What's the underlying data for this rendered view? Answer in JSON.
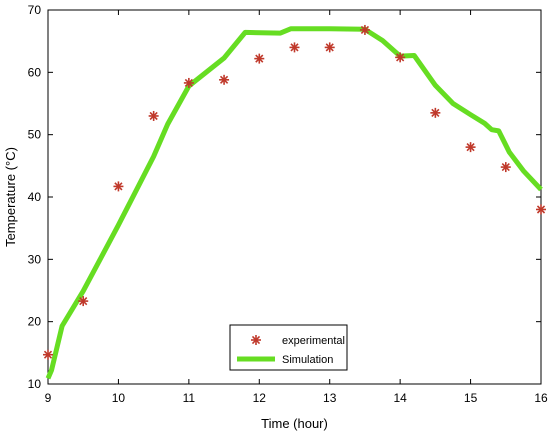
{
  "chart_data": {
    "type": "line",
    "title": "",
    "xlabel": "Time (hour)",
    "ylabel": "Temperature (°C)",
    "xlim": [
      9,
      16
    ],
    "ylim": [
      10,
      70
    ],
    "xticks": [
      "9",
      "10",
      "11",
      "12",
      "13",
      "14",
      "15",
      "16"
    ],
    "yticks": [
      "10",
      "20",
      "30",
      "40",
      "50",
      "60",
      "70"
    ],
    "grid": false,
    "legend_position": "bottom-center",
    "series": [
      {
        "name": "experimental",
        "style": "markers",
        "marker": "asterisk",
        "color": "#c0392b",
        "x": [
          9.0,
          9.5,
          10.0,
          10.5,
          11.0,
          11.5,
          12.0,
          12.5,
          13.0,
          13.5,
          14.0,
          14.5,
          15.0,
          15.5,
          16.0
        ],
        "y": [
          14.7,
          23.3,
          41.7,
          53.0,
          58.3,
          58.8,
          62.2,
          64.0,
          64.0,
          66.8,
          62.4,
          53.5,
          48.0,
          44.8,
          38.0
        ]
      },
      {
        "name": "Simulation",
        "style": "line",
        "color": "#66dd22",
        "x": [
          9.0,
          9.05,
          9.2,
          9.5,
          10.0,
          10.5,
          10.7,
          11.0,
          11.5,
          11.8,
          12.3,
          12.45,
          13.0,
          13.5,
          13.75,
          14.0,
          14.2,
          14.5,
          14.75,
          15.0,
          15.2,
          15.3,
          15.4,
          15.55,
          15.75,
          16.0
        ],
        "y": [
          10.9,
          12.2,
          19.3,
          24.9,
          35.5,
          46.5,
          51.7,
          57.8,
          62.3,
          66.4,
          66.3,
          67.0,
          67.0,
          66.9,
          65.1,
          62.6,
          62.7,
          57.9,
          55.0,
          53.2,
          51.8,
          50.8,
          50.6,
          47.2,
          44.2,
          41.2
        ]
      }
    ]
  }
}
